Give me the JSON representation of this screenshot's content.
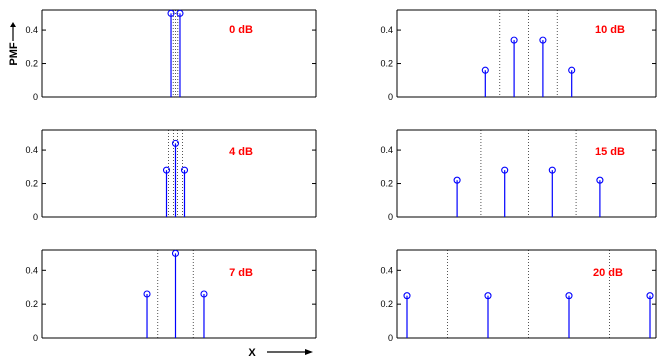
{
  "colors": {
    "stem": "#0000ff",
    "label": "#ff0000",
    "axis": "#000000",
    "divider": "#555555"
  },
  "ylabel": "PMF",
  "xlabel": "X",
  "chart_data": [
    {
      "type": "stem",
      "snr_label": "0 dB",
      "x": [
        -0.04,
        0.04
      ],
      "values": [
        0.5,
        0.5
      ],
      "boundaries": [
        -0.02,
        0,
        0.02
      ],
      "xlim": [
        -1,
        1
      ],
      "ylim": [
        0,
        0.52
      ],
      "yticks": [
        "0",
        "0.2",
        "0.4"
      ]
    },
    {
      "type": "stem",
      "snr_label": "4 dB",
      "x": [
        -0.09,
        0,
        0.09
      ],
      "values": [
        0.28,
        0.44,
        0.28
      ],
      "boundaries": [
        -0.07,
        -0.02,
        0.02,
        0.07
      ],
      "xlim": [
        -1,
        1
      ],
      "ylim": [
        0,
        0.52
      ],
      "yticks": [
        "0",
        "0.2",
        "0.4"
      ]
    },
    {
      "type": "stem",
      "snr_label": "7 dB",
      "x": [
        -0.16,
        0,
        0.16
      ],
      "values": [
        0.26,
        0.5,
        0.26
      ],
      "boundaries": [
        -0.1,
        0.1
      ],
      "xlim": [
        -1,
        1
      ],
      "ylim": [
        0,
        0.52
      ],
      "yticks": [
        "0",
        "0.2",
        "0.4"
      ]
    },
    {
      "type": "stem",
      "snr_label": "10 dB",
      "x": [
        -0.27,
        -0.09,
        0.09,
        0.27
      ],
      "values": [
        0.16,
        0.34,
        0.34,
        0.16
      ],
      "boundaries": [
        -0.18,
        0,
        0.18
      ],
      "xlim": [
        -0.75,
        0.75
      ],
      "ylim": [
        0,
        0.52
      ],
      "yticks": [
        "0",
        "0.2",
        "0.4"
      ]
    },
    {
      "type": "stem",
      "snr_label": "15 dB",
      "x": [
        -0.42,
        -0.14,
        0.14,
        0.42
      ],
      "values": [
        0.22,
        0.28,
        0.28,
        0.22
      ],
      "boundaries": [
        -0.28,
        0,
        0.28
      ],
      "xlim": [
        -0.75,
        0.75
      ],
      "ylim": [
        0,
        0.52
      ],
      "yticks": [
        "0",
        "0.2",
        "0.4"
      ]
    },
    {
      "type": "stem",
      "snr_label": "20 dB",
      "x": [
        -0.75,
        -0.25,
        0.25,
        0.75
      ],
      "values": [
        0.25,
        0.25,
        0.25,
        0.25
      ],
      "boundaries": [
        -0.5,
        0,
        0.5
      ],
      "xlim": [
        -0.75,
        0.75
      ],
      "ylim": [
        0,
        0.52
      ],
      "yticks": [
        "0",
        "0.2",
        "0.4"
      ]
    }
  ]
}
